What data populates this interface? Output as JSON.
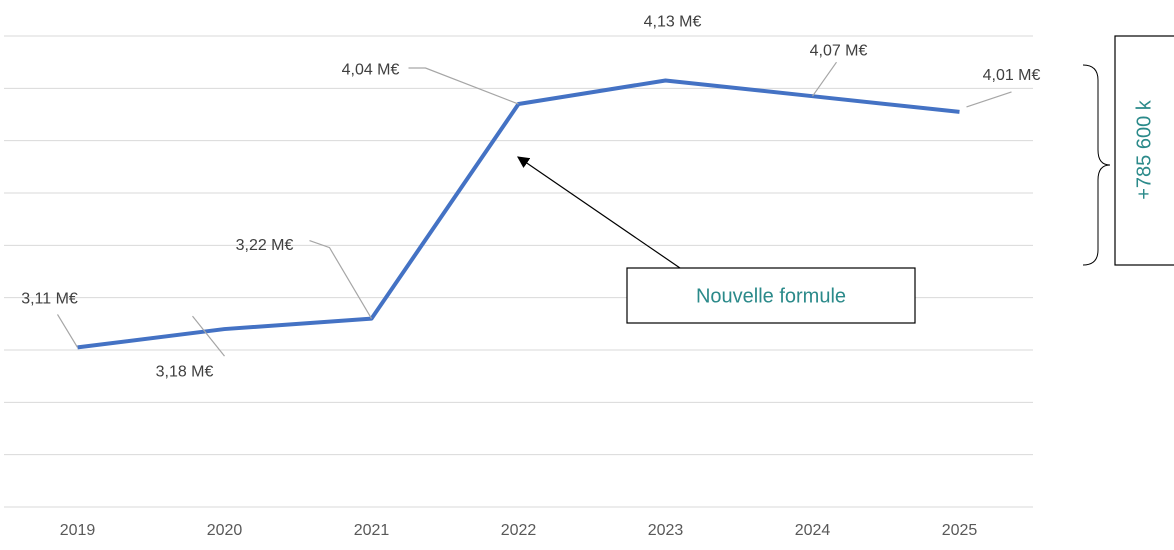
{
  "chart_data": {
    "type": "line",
    "categories": [
      "2019",
      "2020",
      "2021",
      "2022",
      "2023",
      "2024",
      "2025"
    ],
    "series": [
      {
        "color": "#4472c4",
        "values": [
          3.11,
          3.18,
          3.22,
          4.04,
          4.13,
          4.07,
          4.01
        ],
        "value_labels": [
          "3,11 M€",
          "3,18 M€",
          "3,22 M€",
          "4,04 M€",
          "4,13 M€",
          "4,07 M€",
          "4,01 M€"
        ]
      }
    ],
    "ylim": [
      2.5,
      4.3
    ],
    "yticks": [
      2.5,
      2.7,
      2.9,
      3.1,
      3.3,
      3.5,
      3.7,
      3.9,
      4.1,
      4.3
    ],
    "ytick_labels": false,
    "grid": true,
    "annotations": [
      "Nouvelle formule",
      "+785 600 k"
    ]
  }
}
